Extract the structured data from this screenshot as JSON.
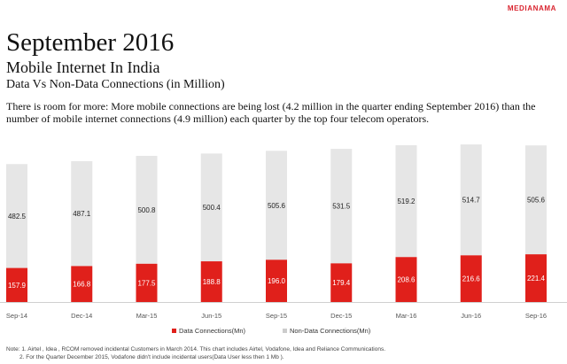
{
  "brand": "MEDIANAMA",
  "title": "September 2016",
  "subtitle": "Mobile Internet In India",
  "subtitle2": "Data Vs Non-Data Connections (in Million)",
  "description": "There is room for more: More mobile connections are being lost (4.2 million in the quarter ending September 2016) than the number of mobile internet connections (4.9 million) each quarter by the top four telecom operators.",
  "colors": {
    "data": "#e0201b",
    "non_data": "#e6e6e6",
    "brand": "#d9232e"
  },
  "chart_data": {
    "type": "bar",
    "stacked": true,
    "categories": [
      "Sep-14",
      "Dec-14",
      "Mar-15",
      "Jun-15",
      "Sep-15",
      "Dec-15",
      "Mar-16",
      "Jun-16",
      "Sep-16"
    ],
    "series": [
      {
        "name": "Data Connections(Mn)",
        "values": [
          157.9,
          166.8,
          177.5,
          188.8,
          196.0,
          179.4,
          208.6,
          216.6,
          221.4
        ]
      },
      {
        "name": "Non-Data Connections(Mn)",
        "values": [
          482.5,
          487.1,
          500.8,
          500.4,
          505.6,
          531.5,
          519.2,
          514.7,
          505.6
        ]
      }
    ],
    "value_labels": {
      "data": [
        "157.9",
        "166.8",
        "177.5",
        "188.8",
        "196.0",
        "179.4",
        "208.6",
        "216.6",
        "221.4"
      ],
      "non_data": [
        "482.5",
        "487.1",
        "500.8",
        "500.4",
        "505.6",
        "531.5",
        "519.2",
        "514.7",
        "505.6"
      ]
    },
    "legend": {
      "position": "bottom-center"
    },
    "ylim": [
      0,
      740
    ],
    "grid": false,
    "xlabel": "",
    "ylabel": ""
  },
  "footnotes": [
    "Note: 1. Airtel , Idea , RCOM removed incidental Customers in March 2014. This chart includes Airtel, Vodafone, Idea and Reliance Communications.",
    "2. For the Quarter December 2015, Vodafone didn't include incidental users(Data User less then 1 Mb )."
  ]
}
